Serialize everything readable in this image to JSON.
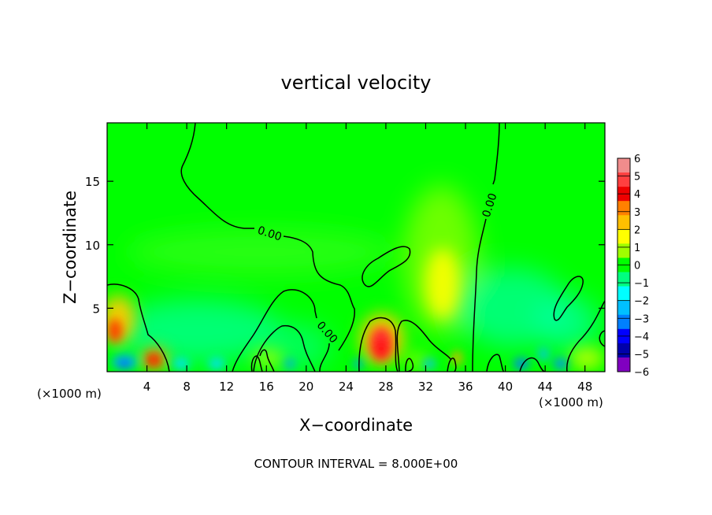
{
  "chart_data": {
    "type": "heatmap",
    "title": "vertical velocity",
    "xlabel": "X−coordinate",
    "ylabel": "Z−coordinate",
    "x_unit_left": "(×1000 m)",
    "x_unit_right": "(×1000 m)",
    "xlim": [
      0,
      50
    ],
    "ylim": [
      0,
      19.6
    ],
    "x_ticks": [
      4,
      8,
      12,
      16,
      20,
      24,
      28,
      32,
      36,
      40,
      44,
      48
    ],
    "y_ticks": [
      5,
      10,
      15
    ],
    "contour_label": "0.00",
    "footer": "CONTOUR INTERVAL = 8.000E+00",
    "colorbar": {
      "levels": [
        6,
        5,
        4,
        3,
        2,
        1,
        0,
        -1,
        -2,
        -3,
        -4,
        -5,
        -6
      ],
      "labels": [
        "6",
        "5",
        "4",
        "3",
        "2",
        "1",
        "0",
        "−1",
        "−2",
        "−3",
        "−4",
        "−5",
        "−6"
      ],
      "colors": [
        "#f08c8c",
        "#ff4040",
        "#ee0000",
        "#ff8000",
        "#ffbf00",
        "#ffff00",
        "#a0ff00",
        "#00ff00",
        "#00ff80",
        "#00ffff",
        "#00c0ff",
        "#0080ff",
        "#0000ff",
        "#0000aa",
        "#8000c0"
      ]
    },
    "features": [
      {
        "x": 27.6,
        "z": 2.0,
        "value": 5
      },
      {
        "x": 4.6,
        "z": 1.1,
        "value": 5
      },
      {
        "x": 0.7,
        "z": 3.5,
        "value": 4
      },
      {
        "x": 33.3,
        "z": 7.0,
        "value": 2
      },
      {
        "x": 1.6,
        "z": 0.8,
        "value": -4
      },
      {
        "x": 41.5,
        "z": 0.6,
        "value": -3
      },
      {
        "x": 45.0,
        "z": 0.9,
        "value": -3
      },
      {
        "x": 10.0,
        "z": 3.0,
        "value": -1
      },
      {
        "x": 40.0,
        "z": 6.5,
        "value": -1
      }
    ]
  }
}
